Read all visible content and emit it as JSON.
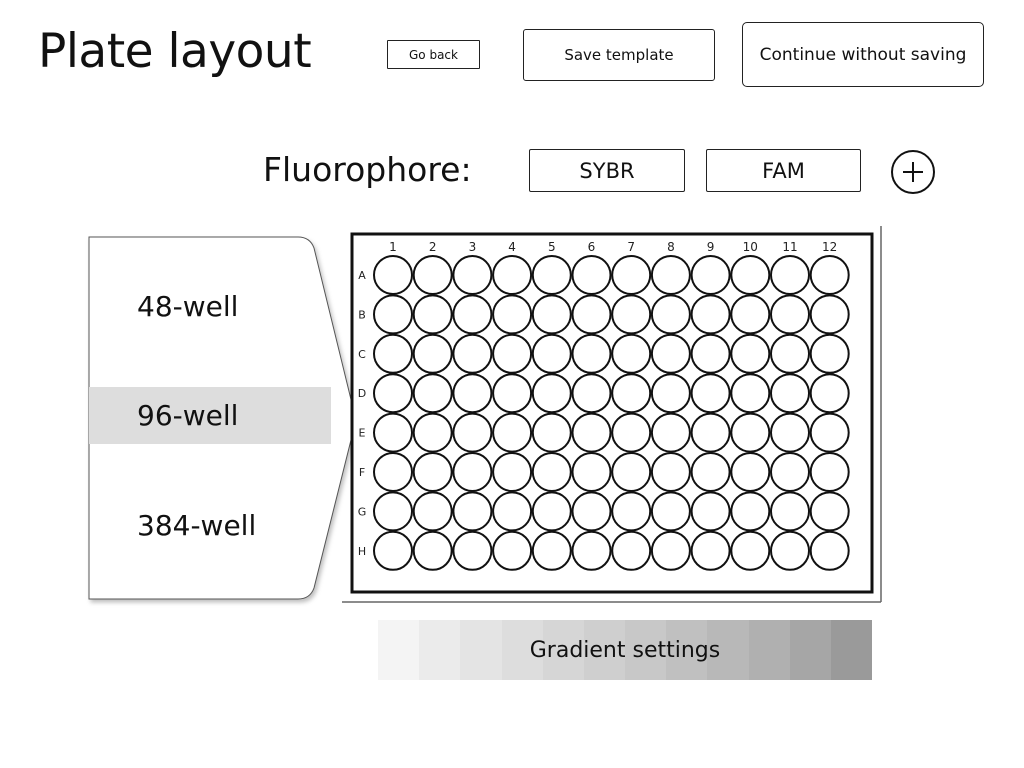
{
  "header": {
    "title": "Plate layout",
    "go_back_label": "Go back",
    "save_template_label": "Save template",
    "continue_label": "Continue without saving"
  },
  "fluorophore": {
    "label": "Fluorophore:",
    "options": [
      "SYBR",
      "FAM"
    ],
    "add_icon": "plus-icon"
  },
  "plate_selector": {
    "items": [
      {
        "label": "48-well",
        "selected": false
      },
      {
        "label": "96-well",
        "selected": true
      },
      {
        "label": "384-well",
        "selected": false
      }
    ]
  },
  "plate": {
    "columns": [
      "1",
      "2",
      "3",
      "4",
      "5",
      "6",
      "7",
      "8",
      "9",
      "10",
      "11",
      "12"
    ],
    "rows": [
      "A",
      "B",
      "C",
      "D",
      "E",
      "F",
      "G",
      "H"
    ]
  },
  "gradient": {
    "label": "Gradient settings",
    "colors": [
      "#f4f4f4",
      "#ebebeb",
      "#e4e4e4",
      "#dddddd",
      "#d6d6d6",
      "#cfcfcf",
      "#c8c8c8",
      "#c0c0c0",
      "#b8b8b8",
      "#b0b0b0",
      "#a6a6a6",
      "#9a9a9a"
    ]
  }
}
